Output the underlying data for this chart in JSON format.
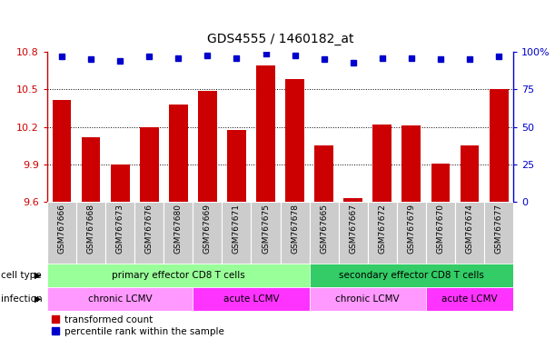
{
  "title": "GDS4555 / 1460182_at",
  "samples": [
    "GSM767666",
    "GSM767668",
    "GSM767673",
    "GSM767676",
    "GSM767680",
    "GSM767669",
    "GSM767671",
    "GSM767675",
    "GSM767678",
    "GSM767665",
    "GSM767667",
    "GSM767672",
    "GSM767679",
    "GSM767670",
    "GSM767674",
    "GSM767677"
  ],
  "bar_values": [
    10.42,
    10.12,
    9.9,
    10.2,
    10.38,
    10.49,
    10.18,
    10.69,
    10.58,
    10.05,
    9.63,
    10.22,
    10.21,
    9.91,
    10.05,
    10.5
  ],
  "percentile_values": [
    97,
    95,
    94,
    97,
    96,
    98,
    96,
    99,
    98,
    95,
    93,
    96,
    96,
    95,
    95,
    97
  ],
  "ylim_left": [
    9.6,
    10.8
  ],
  "ylim_right": [
    0,
    100
  ],
  "yticks_left": [
    9.6,
    9.9,
    10.2,
    10.5,
    10.8
  ],
  "yticks_right": [
    0,
    25,
    50,
    75,
    100
  ],
  "ytick_labels_right": [
    "0",
    "25",
    "50",
    "75",
    "100%"
  ],
  "bar_color": "#cc0000",
  "dot_color": "#0000cc",
  "cell_type_groups": [
    {
      "label": "primary effector CD8 T cells",
      "start": 0,
      "end": 9,
      "color": "#99ff99"
    },
    {
      "label": "secondary effector CD8 T cells",
      "start": 9,
      "end": 16,
      "color": "#33cc66"
    }
  ],
  "infection_groups": [
    {
      "label": "chronic LCMV",
      "start": 0,
      "end": 5,
      "color": "#ff99ff"
    },
    {
      "label": "acute LCMV",
      "start": 5,
      "end": 9,
      "color": "#ff33ff"
    },
    {
      "label": "chronic LCMV",
      "start": 9,
      "end": 13,
      "color": "#ff99ff"
    },
    {
      "label": "acute LCMV",
      "start": 13,
      "end": 16,
      "color": "#ff33ff"
    }
  ],
  "legend_items": [
    {
      "label": "transformed count",
      "color": "#cc0000"
    },
    {
      "label": "percentile rank within the sample",
      "color": "#0000cc"
    }
  ],
  "axis_color_left": "#cc0000",
  "axis_color_right": "#0000cc",
  "xticklabel_bg": "#cccccc"
}
